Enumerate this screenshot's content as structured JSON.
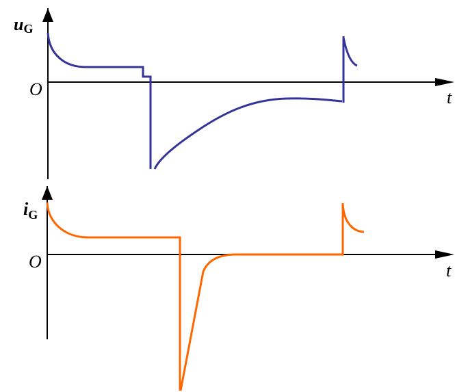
{
  "upper_plot": {
    "y_label": "u",
    "y_label_sub": "G",
    "origin_label": "O",
    "x_label": "t",
    "curve_color": "#333399"
  },
  "lower_plot": {
    "y_label": "i",
    "y_label_sub": "G",
    "origin_label": "O",
    "x_label": "t",
    "curve_color": "#ff6600"
  }
}
